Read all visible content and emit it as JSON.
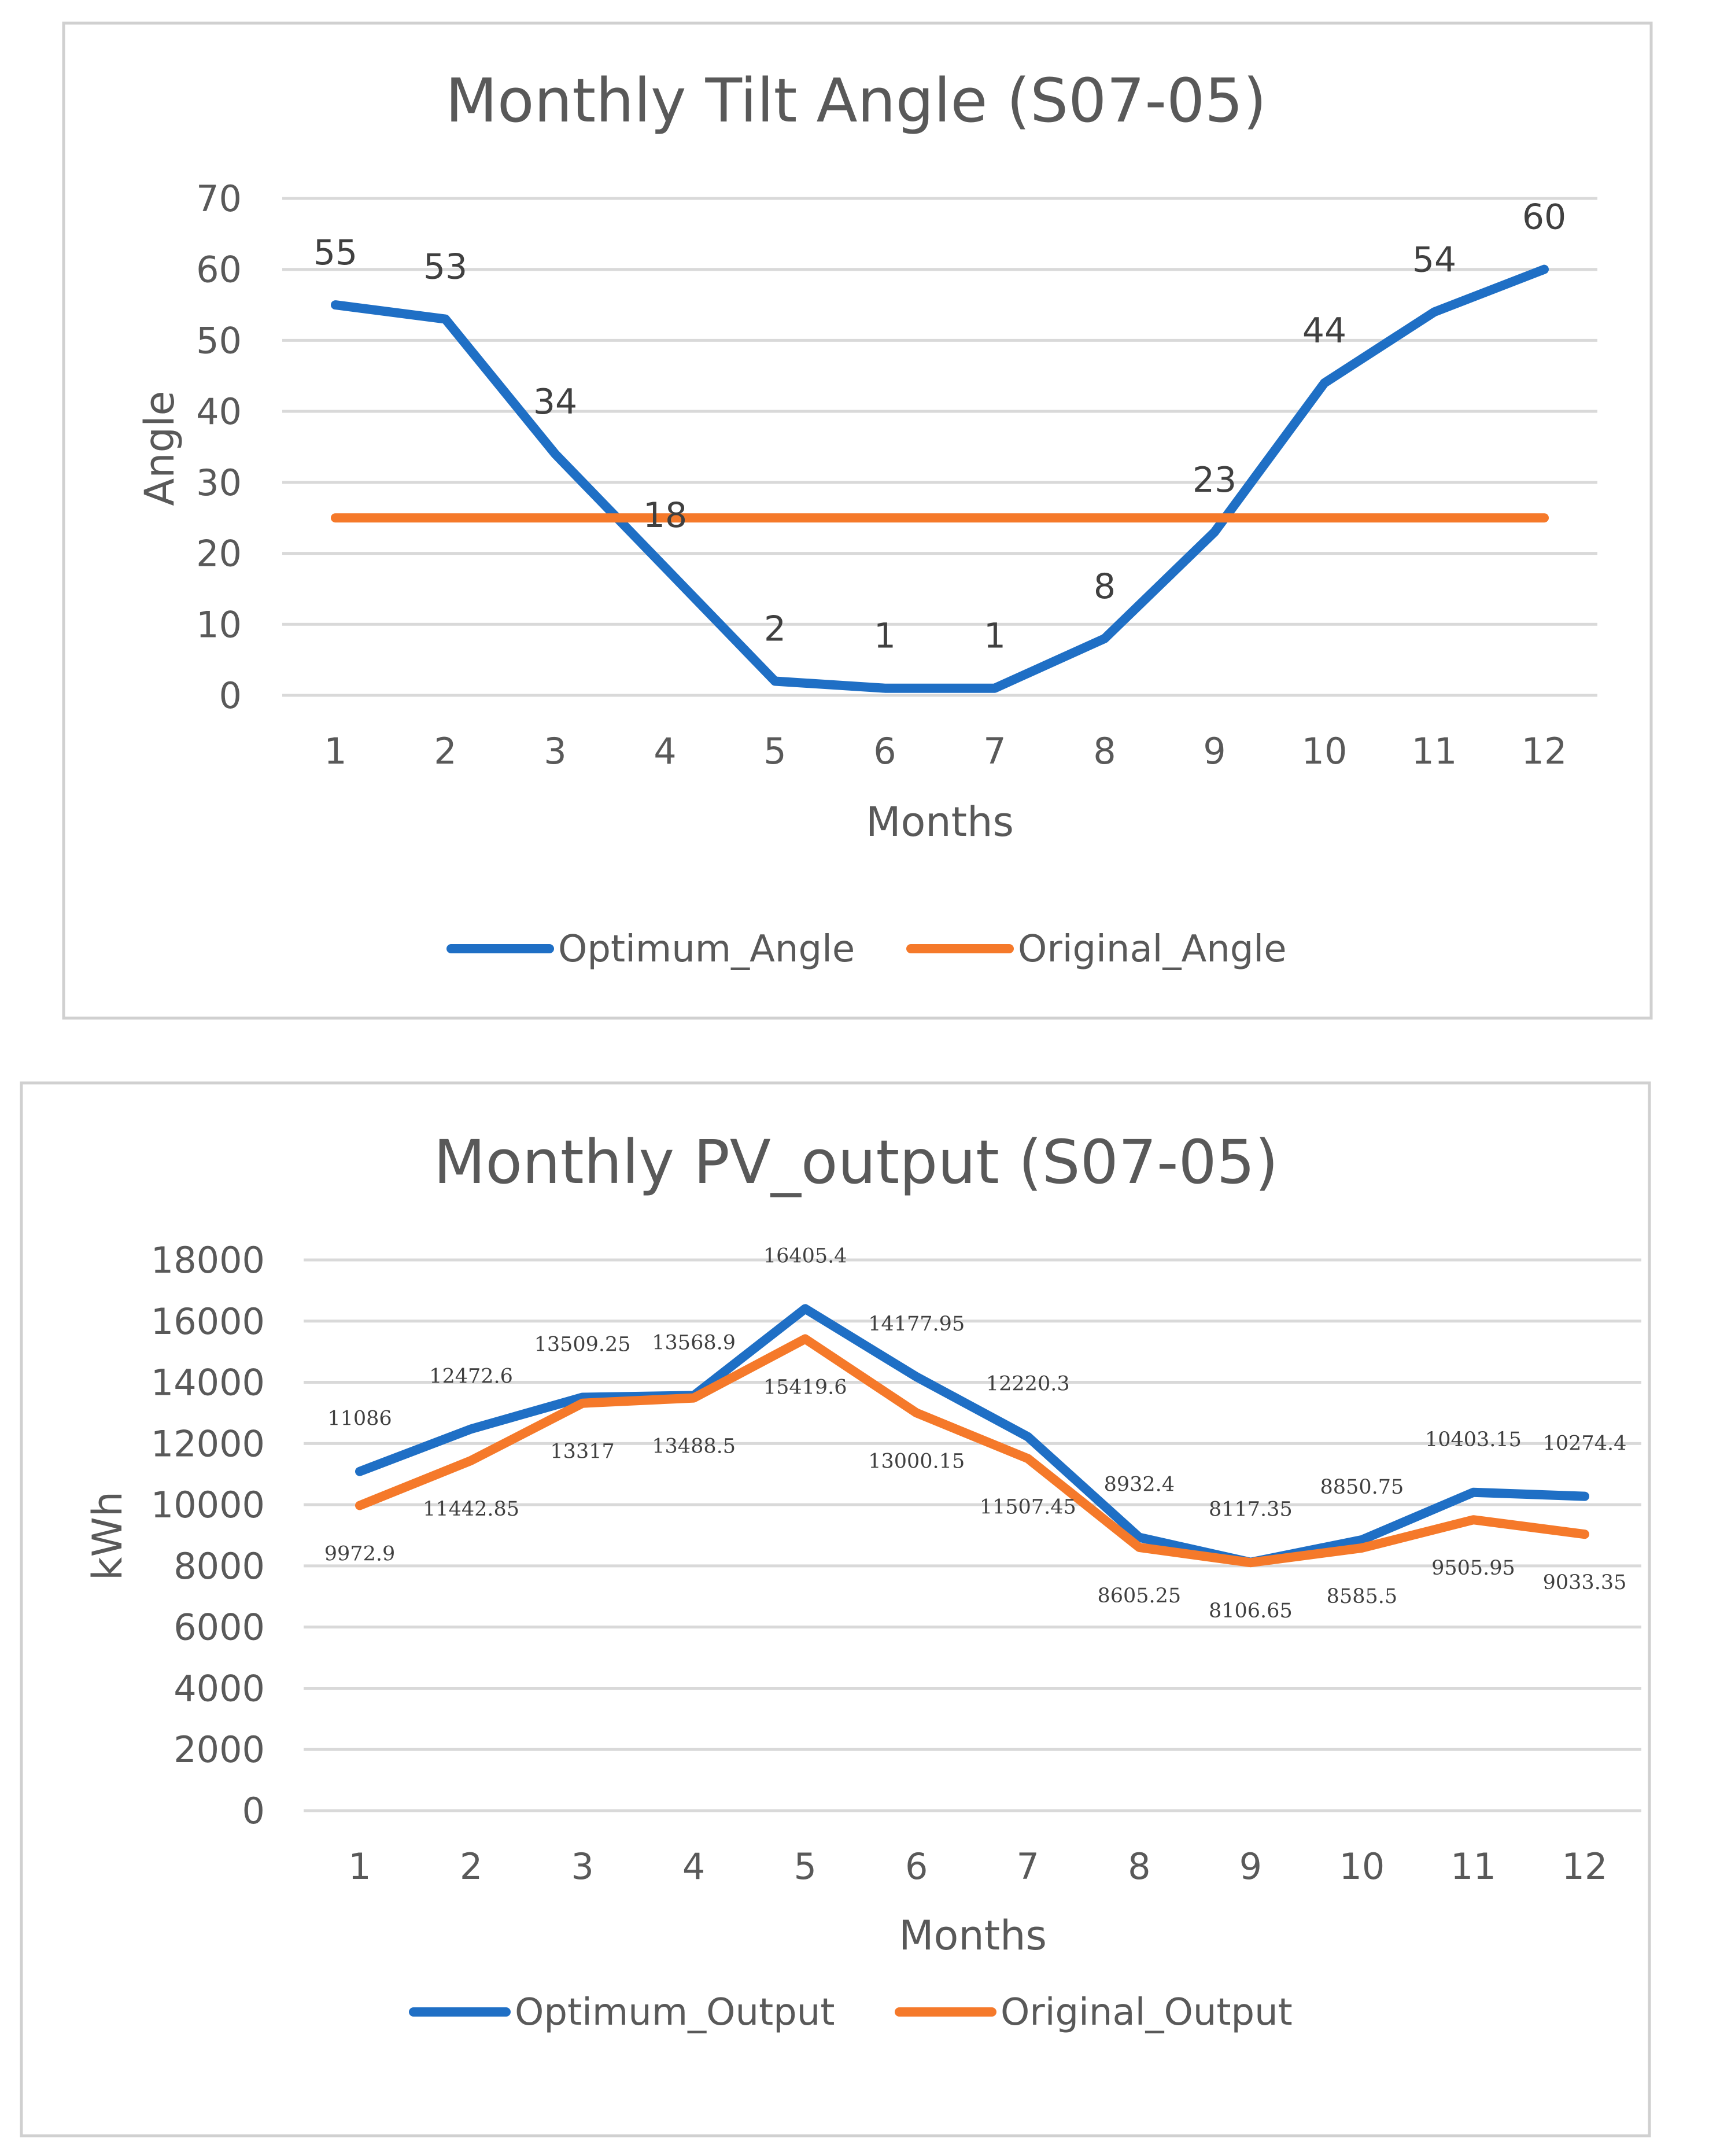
{
  "chart_data": [
    {
      "type": "line",
      "title": "Monthly Tilt Angle (S07-05)",
      "xlabel": "Months",
      "ylabel": "Angle",
      "ylim": [
        0,
        70
      ],
      "yticks": [
        0,
        10,
        20,
        30,
        40,
        50,
        60,
        70
      ],
      "categories": [
        "1",
        "2",
        "3",
        "4",
        "5",
        "6",
        "7",
        "8",
        "9",
        "10",
        "11",
        "12"
      ],
      "grid": true,
      "legend_position": "bottom",
      "series": [
        {
          "name": "Optimum_Angle",
          "color": "#1f6fc5",
          "values": [
            55,
            53,
            34,
            18,
            2,
            1,
            1,
            8,
            23,
            44,
            54,
            60
          ],
          "labels": [
            "55",
            "53",
            "34",
            "18",
            "2",
            "1",
            "1",
            "8",
            "23",
            "44",
            "54",
            "60"
          ]
        },
        {
          "name": "Original_Angle",
          "color": "#f5792a",
          "values": [
            25,
            25,
            25,
            25,
            25,
            25,
            25,
            25,
            25,
            25,
            25,
            25
          ],
          "labels": []
        }
      ]
    },
    {
      "type": "line",
      "title": "Monthly PV_output (S07-05)",
      "xlabel": "Months",
      "ylabel": "kWh",
      "ylim": [
        0,
        18000
      ],
      "yticks": [
        0,
        2000,
        4000,
        6000,
        8000,
        10000,
        12000,
        14000,
        16000,
        18000
      ],
      "categories": [
        "1",
        "2",
        "3",
        "4",
        "5",
        "6",
        "7",
        "8",
        "9",
        "10",
        "11",
        "12"
      ],
      "grid": true,
      "legend_position": "bottom",
      "series": [
        {
          "name": "Optimum_Output",
          "color": "#1f6fc5",
          "values": [
            11086,
            12472.6,
            13509.25,
            13568.9,
            16405.4,
            14177.95,
            12220.3,
            8932.4,
            8117.35,
            8850.75,
            10403.15,
            10274.4
          ],
          "labels": [
            "11086",
            "12472.6",
            "13509.25",
            "13568.9",
            "16405.4",
            "14177.95",
            "12220.3",
            "8932.4",
            "8117.35",
            "8850.75",
            "10403.15",
            "10274.4"
          ]
        },
        {
          "name": "Original_Output",
          "color": "#f5792a",
          "values": [
            9972.9,
            11442.85,
            13317,
            13488.5,
            15419.6,
            13000.15,
            11507.45,
            8605.25,
            8106.65,
            8585.5,
            9505.95,
            9033.35
          ],
          "labels": [
            "9972.9",
            "11442.85",
            "13317",
            "13488.5",
            "15419.6",
            "13000.15",
            "11507.45",
            "8605.25",
            "8106.65",
            "8585.5",
            "9505.95",
            "9033.35"
          ]
        }
      ]
    }
  ]
}
